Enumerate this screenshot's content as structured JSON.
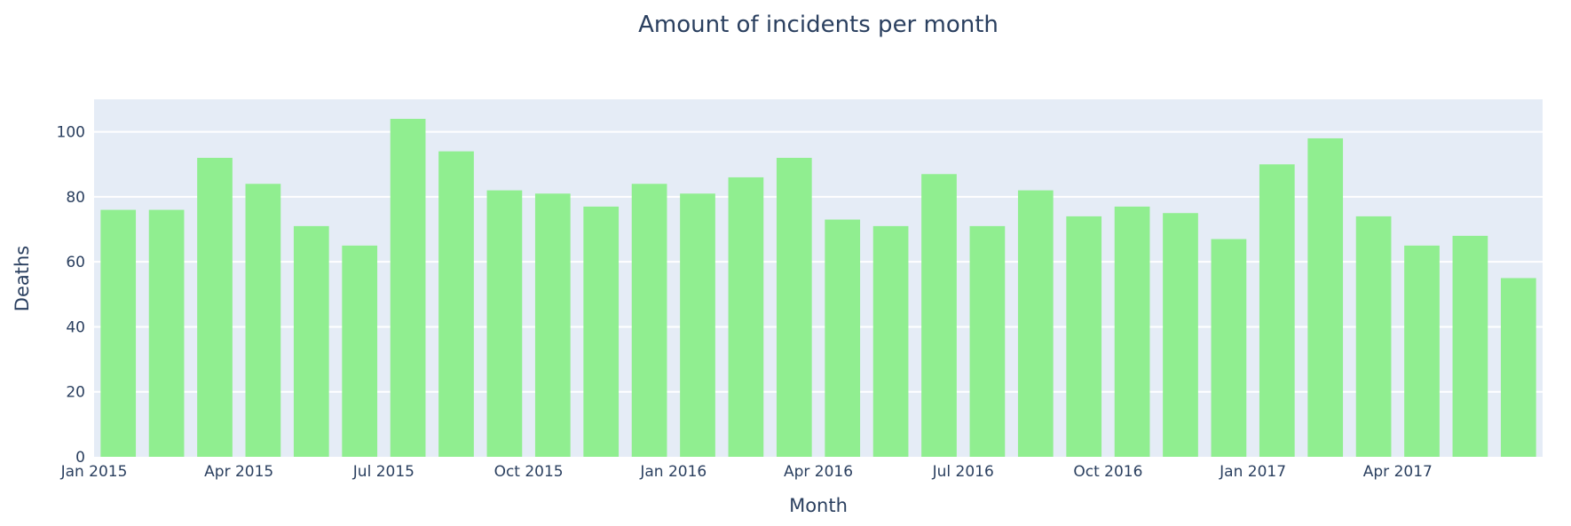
{
  "chart_data": {
    "type": "bar",
    "title": "Amount of incidents per month",
    "xlabel": "Month",
    "ylabel": "Deaths",
    "x": [
      "2015-01",
      "2015-02",
      "2015-03",
      "2015-04",
      "2015-05",
      "2015-06",
      "2015-07",
      "2015-08",
      "2015-09",
      "2015-10",
      "2015-11",
      "2015-12",
      "2016-01",
      "2016-02",
      "2016-03",
      "2016-04",
      "2016-05",
      "2016-06",
      "2016-07",
      "2016-08",
      "2016-09",
      "2016-10",
      "2016-11",
      "2016-12",
      "2017-01",
      "2017-02",
      "2017-03",
      "2017-04",
      "2017-05",
      "2017-06"
    ],
    "values": [
      76,
      76,
      92,
      84,
      71,
      65,
      104,
      94,
      82,
      81,
      77,
      84,
      81,
      86,
      92,
      73,
      71,
      87,
      71,
      82,
      74,
      77,
      75,
      67,
      90,
      98,
      74,
      65,
      68,
      55
    ],
    "ylim": [
      0,
      110
    ],
    "yticks": [
      0,
      20,
      40,
      60,
      80,
      100
    ],
    "xticks": [
      {
        "label": "Jan 2015",
        "x": "2015-01"
      },
      {
        "label": "Apr 2015",
        "x": "2015-04"
      },
      {
        "label": "Jul 2015",
        "x": "2015-07"
      },
      {
        "label": "Oct 2015",
        "x": "2015-10"
      },
      {
        "label": "Jan 2016",
        "x": "2016-01"
      },
      {
        "label": "Apr 2016",
        "x": "2016-04"
      },
      {
        "label": "Jul 2016",
        "x": "2016-07"
      },
      {
        "label": "Oct 2016",
        "x": "2016-10"
      },
      {
        "label": "Jan 2017",
        "x": "2017-01"
      },
      {
        "label": "Apr 2017",
        "x": "2017-04"
      }
    ],
    "colors": {
      "bar": "#90ee90",
      "plot_bg": "#e5ecf6",
      "grid": "#ffffff",
      "text": "#2a3f5f"
    },
    "grid": true
  }
}
